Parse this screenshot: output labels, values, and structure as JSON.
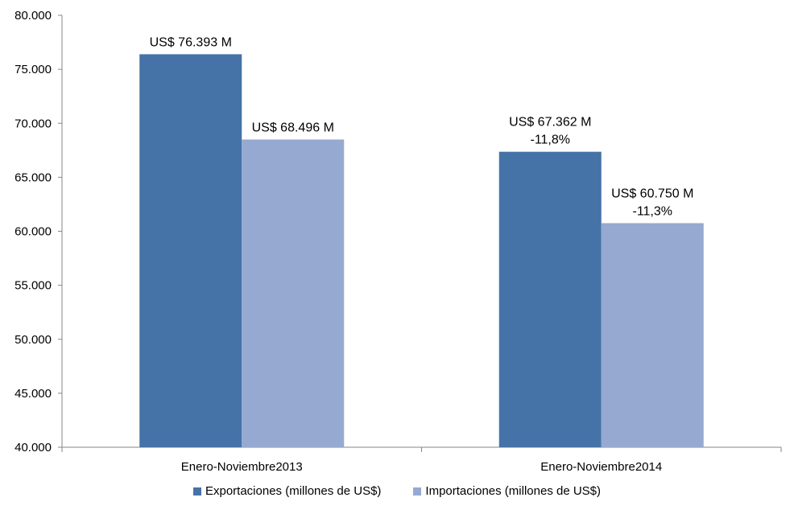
{
  "chart_data": {
    "type": "bar",
    "title": "",
    "xlabel": "",
    "ylabel": "",
    "ylim": [
      40000,
      80000
    ],
    "yticks": [
      40000,
      45000,
      50000,
      55000,
      60000,
      65000,
      70000,
      75000,
      80000
    ],
    "ytick_labels": [
      "40.000",
      "45.000",
      "50.000",
      "55.000",
      "60.000",
      "65.000",
      "70.000",
      "75.000",
      "80.000"
    ],
    "categories": [
      "Enero-Noviembre2013",
      "Enero-Noviembre2014"
    ],
    "series": [
      {
        "name": "Exportaciones (millones de US$)",
        "color": "#4572A7",
        "values": [
          76393,
          67362
        ],
        "labels": [
          [
            "US$ 76.393 M"
          ],
          [
            "US$ 67.362 M",
            "-11,8%"
          ]
        ]
      },
      {
        "name": "Importaciones (millones de US$)",
        "color": "#95A9D1",
        "values": [
          68496,
          60750
        ],
        "labels": [
          [
            "US$ 68.496 M"
          ],
          [
            "US$ 60.750 M",
            "-11,3%"
          ]
        ]
      }
    ],
    "grid": false,
    "legend_position": "bottom"
  }
}
